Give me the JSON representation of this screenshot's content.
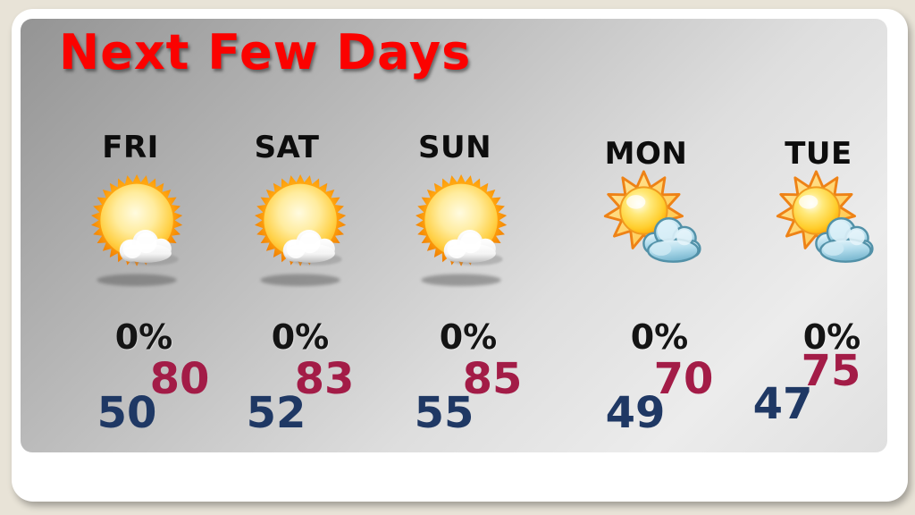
{
  "slide": {
    "title": "Next Few Days",
    "colors": {
      "title": "#fb0200",
      "day_label": "#0d0d0d",
      "precip": "#141414",
      "high_temp": "#a31c47",
      "low_temp": "#1f3864",
      "frame": "#ffffff",
      "page_background": "#e8e3d7"
    }
  },
  "forecast": {
    "days": [
      {
        "label": "FRI",
        "icon": "mostly-sunny",
        "precip": "0%",
        "high": "80",
        "low": "50"
      },
      {
        "label": "SAT",
        "icon": "mostly-sunny",
        "precip": "0%",
        "high": "83",
        "low": "52"
      },
      {
        "label": "SUN",
        "icon": "mostly-sunny",
        "precip": "0%",
        "high": "85",
        "low": "55"
      },
      {
        "label": "MON",
        "icon": "partly-cloudy",
        "precip": "0%",
        "high": "70",
        "low": "49"
      },
      {
        "label": "TUE",
        "icon": "partly-cloudy",
        "precip": "0%",
        "high": "75",
        "low": "47"
      }
    ]
  }
}
